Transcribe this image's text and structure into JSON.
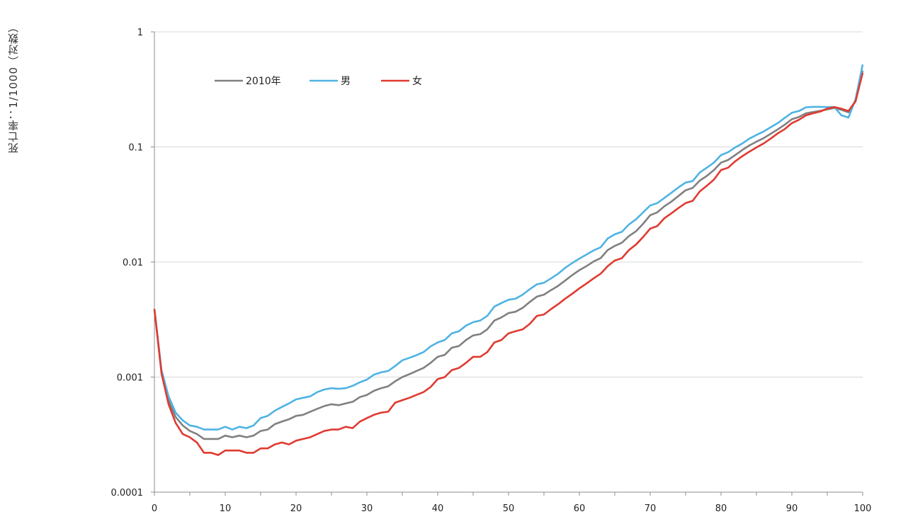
{
  "chart_data": {
    "type": "line",
    "ylabel": "死亡率：1/1000（对数）",
    "yscale": "log",
    "ylim": [
      0.0001,
      1
    ],
    "xlim": [
      0,
      100
    ],
    "y_ticks": [
      {
        "value": 1,
        "label": "1"
      },
      {
        "value": 0.1,
        "label": "0.1"
      },
      {
        "value": 0.01,
        "label": "0.01"
      },
      {
        "value": 0.001,
        "label": "0.001"
      },
      {
        "value": 0.0001,
        "label": "0.0001"
      }
    ],
    "x_ticks": [
      {
        "value": 0,
        "label": "0"
      },
      {
        "value": 10,
        "label": "10"
      },
      {
        "value": 20,
        "label": "20"
      },
      {
        "value": 30,
        "label": "30"
      },
      {
        "value": 40,
        "label": "40"
      },
      {
        "value": 50,
        "label": "50"
      },
      {
        "value": 60,
        "label": "60"
      },
      {
        "value": 70,
        "label": "70"
      },
      {
        "value": 80,
        "label": "80"
      },
      {
        "value": 90,
        "label": "90"
      },
      {
        "value": 100,
        "label": "100"
      }
    ],
    "grid": "horizontal",
    "legend_position": "top-left",
    "x": [
      0,
      1,
      2,
      3,
      4,
      5,
      6,
      7,
      8,
      9,
      10,
      11,
      12,
      13,
      14,
      15,
      16,
      17,
      18,
      19,
      20,
      21,
      22,
      23,
      24,
      25,
      26,
      27,
      28,
      29,
      30,
      31,
      32,
      33,
      34,
      35,
      36,
      37,
      38,
      39,
      40,
      41,
      42,
      43,
      44,
      45,
      46,
      47,
      48,
      49,
      50,
      51,
      52,
      53,
      54,
      55,
      56,
      57,
      58,
      59,
      60,
      61,
      62,
      63,
      64,
      65,
      66,
      67,
      68,
      69,
      70,
      71,
      72,
      73,
      74,
      75,
      76,
      77,
      78,
      79,
      80,
      81,
      82,
      83,
      84,
      85,
      86,
      87,
      88,
      89,
      90,
      91,
      92,
      93,
      94,
      95,
      96,
      97,
      98,
      99,
      100
    ],
    "series": [
      {
        "name": "2010年",
        "color": "#808080",
        "values": [
          0.0039,
          0.00112,
          0.00062,
          0.00045,
          0.00038,
          0.00034,
          0.00032,
          0.00029,
          0.00029,
          0.00029,
          0.00031,
          0.0003,
          0.00031,
          0.0003,
          0.00031,
          0.00034,
          0.00035,
          0.00039,
          0.00041,
          0.00043,
          0.00046,
          0.00047,
          0.0005,
          0.00053,
          0.00056,
          0.00058,
          0.00057,
          0.00059,
          0.00061,
          0.00067,
          0.0007,
          0.00076,
          0.0008,
          0.00083,
          0.00092,
          0.001,
          0.00106,
          0.00113,
          0.0012,
          0.00133,
          0.0015,
          0.00156,
          0.0018,
          0.00186,
          0.0021,
          0.0023,
          0.00236,
          0.0026,
          0.0031,
          0.0033,
          0.0036,
          0.0037,
          0.004,
          0.0045,
          0.005,
          0.0052,
          0.0057,
          0.0062,
          0.0069,
          0.0077,
          0.0085,
          0.0092,
          0.0101,
          0.0108,
          0.0127,
          0.0138,
          0.0147,
          0.0168,
          0.0185,
          0.0215,
          0.0255,
          0.027,
          0.0305,
          0.0335,
          0.0375,
          0.042,
          0.044,
          0.051,
          0.056,
          0.063,
          0.073,
          0.077,
          0.085,
          0.094,
          0.103,
          0.111,
          0.119,
          0.13,
          0.142,
          0.156,
          0.174,
          0.182,
          0.196,
          0.201,
          0.206,
          0.212,
          0.218,
          0.21,
          0.2,
          0.25,
          0.46
        ]
      },
      {
        "name": "男",
        "color": "#4fb3e3",
        "values": [
          0.0039,
          0.00115,
          0.00068,
          0.00049,
          0.00042,
          0.00038,
          0.00037,
          0.00035,
          0.00035,
          0.00035,
          0.00037,
          0.00035,
          0.00037,
          0.00036,
          0.00038,
          0.00044,
          0.00046,
          0.00051,
          0.00055,
          0.00059,
          0.00064,
          0.00066,
          0.00068,
          0.00074,
          0.00078,
          0.0008,
          0.00079,
          0.0008,
          0.00084,
          0.0009,
          0.00095,
          0.00105,
          0.0011,
          0.00113,
          0.00125,
          0.0014,
          0.00147,
          0.00155,
          0.00165,
          0.00185,
          0.002,
          0.0021,
          0.0024,
          0.0025,
          0.0028,
          0.003,
          0.0031,
          0.0034,
          0.0041,
          0.0044,
          0.0047,
          0.0048,
          0.0052,
          0.0058,
          0.0064,
          0.0066,
          0.0072,
          0.0079,
          0.0089,
          0.0098,
          0.0107,
          0.0116,
          0.0126,
          0.0134,
          0.016,
          0.0174,
          0.0183,
          0.0212,
          0.0235,
          0.027,
          0.031,
          0.0325,
          0.036,
          0.04,
          0.0445,
          0.049,
          0.0505,
          0.06,
          0.066,
          0.073,
          0.085,
          0.09,
          0.099,
          0.107,
          0.118,
          0.127,
          0.136,
          0.148,
          0.161,
          0.179,
          0.198,
          0.205,
          0.221,
          0.223,
          0.223,
          0.222,
          0.222,
          0.188,
          0.18,
          0.26,
          0.52
        ]
      },
      {
        "name": "女",
        "color": "#e03a30",
        "values": [
          0.0039,
          0.00108,
          0.00058,
          0.0004,
          0.00032,
          0.0003,
          0.00027,
          0.00022,
          0.00022,
          0.00021,
          0.00023,
          0.00023,
          0.00023,
          0.00022,
          0.00022,
          0.00024,
          0.00024,
          0.00026,
          0.00027,
          0.00026,
          0.00028,
          0.00029,
          0.0003,
          0.00032,
          0.00034,
          0.00035,
          0.00035,
          0.00037,
          0.00036,
          0.00041,
          0.00044,
          0.00047,
          0.00049,
          0.0005,
          0.0006,
          0.00063,
          0.00066,
          0.0007,
          0.00074,
          0.00082,
          0.00096,
          0.001,
          0.00115,
          0.0012,
          0.00133,
          0.0015,
          0.0015,
          0.00165,
          0.002,
          0.0021,
          0.0024,
          0.0025,
          0.0026,
          0.0029,
          0.0034,
          0.0035,
          0.0039,
          0.0043,
          0.0048,
          0.0053,
          0.0059,
          0.0065,
          0.0072,
          0.0079,
          0.0092,
          0.0103,
          0.0108,
          0.0127,
          0.0142,
          0.0165,
          0.0195,
          0.0205,
          0.024,
          0.0265,
          0.0295,
          0.0325,
          0.034,
          0.041,
          0.046,
          0.052,
          0.063,
          0.066,
          0.075,
          0.083,
          0.091,
          0.099,
          0.107,
          0.118,
          0.131,
          0.143,
          0.161,
          0.172,
          0.188,
          0.196,
          0.203,
          0.215,
          0.222,
          0.215,
          0.205,
          0.25,
          0.44
        ]
      }
    ]
  }
}
